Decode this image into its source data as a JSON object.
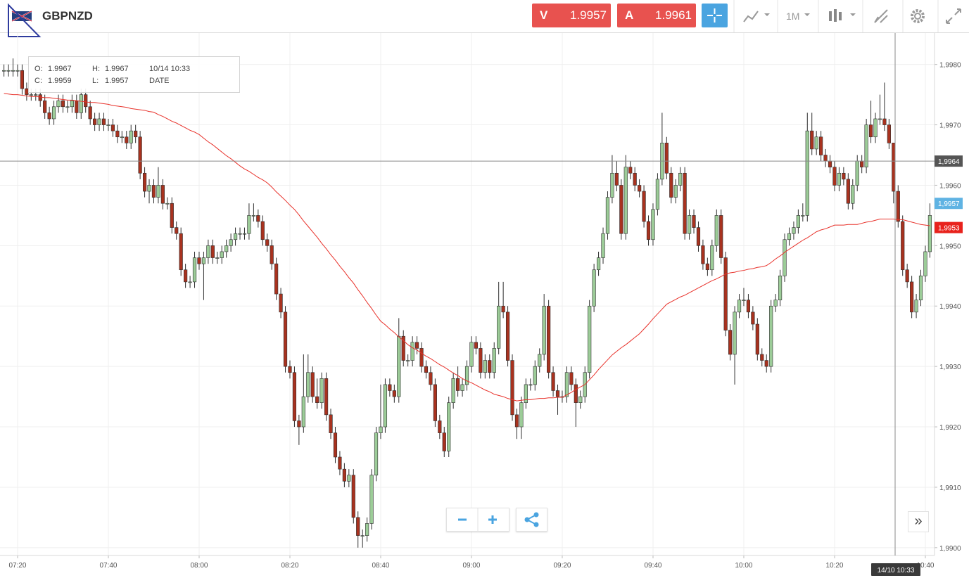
{
  "header": {
    "symbol": "GBPNZD",
    "sell": {
      "letter": "V",
      "price": 1.9957
    },
    "buy": {
      "letter": "A",
      "price": 1.9961
    },
    "timeframe": "1M"
  },
  "tooltip": {
    "open_label": "O:",
    "open": 1.9967,
    "high_label": "H:",
    "high": 1.9967,
    "time": "10/14 10:33",
    "close_label": "C:",
    "close": 1.9959,
    "low_label": "L:",
    "low": 1.9957,
    "date_label": "DATE"
  },
  "chart_data": {
    "type": "candlestick",
    "categories": [
      null,
      null,
      null,
      "07:20",
      null,
      null,
      null,
      null,
      null,
      null,
      null,
      null,
      null,
      null,
      null,
      null,
      null,
      null,
      null,
      null,
      null,
      null,
      null,
      "07:40",
      null,
      null,
      null,
      null,
      null,
      null,
      null,
      null,
      null,
      null,
      null,
      null,
      null,
      null,
      null,
      null,
      null,
      null,
      null,
      "08:00",
      null,
      null,
      null,
      null,
      null,
      null,
      null,
      null,
      null,
      null,
      null,
      null,
      null,
      null,
      null,
      null,
      null,
      null,
      null,
      "08:20",
      null,
      null,
      null,
      null,
      null,
      null,
      null,
      null,
      null,
      null,
      null,
      null,
      null,
      null,
      null,
      null,
      null,
      null,
      null,
      "08:40",
      null,
      null,
      null,
      null,
      null,
      null,
      null,
      null,
      null,
      null,
      null,
      null,
      null,
      null,
      null,
      null,
      null,
      null,
      null,
      "09:00",
      null,
      null,
      null,
      null,
      null,
      null,
      null,
      null,
      null,
      null,
      null,
      null,
      null,
      null,
      null,
      null,
      null,
      null,
      null,
      "09:20",
      null,
      null,
      null,
      null,
      null,
      null,
      null,
      null,
      null,
      null,
      null,
      null,
      null,
      null,
      null,
      null,
      null,
      null,
      null,
      "09:40",
      null,
      null,
      null,
      null,
      null,
      null,
      null,
      null,
      null,
      null,
      null,
      null,
      null,
      null,
      null,
      null,
      null,
      null,
      null,
      "10:00",
      null,
      null,
      null,
      null,
      null,
      null,
      null,
      null,
      null,
      null,
      null,
      null,
      null,
      null,
      null,
      null,
      null,
      null,
      null,
      "10:20",
      null,
      null,
      null,
      null,
      null,
      null,
      null,
      null,
      null,
      null,
      null,
      null,
      null,
      null,
      null,
      null,
      null,
      null,
      null,
      "10:40",
      null
    ],
    "open": [
      1.9979,
      1.9979,
      1.9979,
      1.9979,
      1.9979,
      1.9976,
      1.9975,
      1.9975,
      1.9975,
      1.9974,
      1.9972,
      1.9971,
      1.9973,
      1.9974,
      1.9973,
      1.9973,
      1.9974,
      1.9972,
      1.9975,
      1.9973,
      1.9971,
      1.997,
      1.9971,
      1.997,
      1.997,
      1.9969,
      1.9968,
      1.9968,
      1.9967,
      1.9969,
      1.9968,
      1.9962,
      1.9959,
      1.996,
      1.9958,
      1.996,
      1.9957,
      1.9957,
      1.9953,
      1.9952,
      1.9946,
      1.9944,
      1.9944,
      1.9948,
      1.9947,
      1.9948,
      1.995,
      1.9948,
      1.9948,
      1.9949,
      1.995,
      1.9951,
      1.9952,
      1.9952,
      1.9952,
      1.9955,
      1.9955,
      1.9954,
      1.9951,
      1.995,
      1.9947,
      1.9942,
      1.9939,
      1.993,
      1.9929,
      1.9921,
      1.992,
      1.9925,
      1.9929,
      1.9925,
      1.9924,
      1.9928,
      1.9922,
      1.9919,
      1.9915,
      1.9913,
      1.9911,
      1.9912,
      1.9905,
      1.9902,
      1.9902,
      1.9904,
      1.9912,
      1.9919,
      1.992,
      1.9927,
      1.9926,
      1.9925,
      1.9935,
      1.9931,
      1.9931,
      1.9934,
      1.9933,
      1.993,
      1.9929,
      1.9927,
      1.9921,
      1.9919,
      1.9916,
      1.9924,
      1.9928,
      1.9926,
      1.9927,
      1.993,
      1.9934,
      1.9933,
      1.9929,
      1.9931,
      1.9929,
      1.9933,
      1.994,
      1.9939,
      1.9931,
      1.9922,
      1.992,
      1.9924,
      1.9927,
      1.9927,
      1.993,
      1.9932,
      1.994,
      1.9929,
      1.9926,
      1.9925,
      1.9925,
      1.9929,
      1.9927,
      1.9924,
      1.9925,
      1.9929,
      1.994,
      1.9946,
      1.9948,
      1.9952,
      1.9958,
      1.9962,
      1.996,
      1.9952,
      1.9963,
      1.9962,
      1.996,
      1.9959,
      1.9954,
      1.9951,
      1.9956,
      1.9961,
      1.9967,
      1.9962,
      1.9958,
      1.996,
      1.9962,
      1.9952,
      1.9955,
      1.9953,
      1.995,
      1.9947,
      1.9946,
      1.995,
      1.9955,
      1.9948,
      1.9936,
      1.9932,
      1.9939,
      1.9941,
      1.9941,
      1.9939,
      1.9937,
      1.9932,
      1.9931,
      1.993,
      1.994,
      1.9941,
      1.9945,
      1.9951,
      1.9952,
      1.9953,
      1.9955,
      1.9955,
      1.9969,
      1.9966,
      1.9968,
      1.9965,
      1.9964,
      1.9963,
      1.996,
      1.9962,
      1.9961,
      1.9957,
      1.996,
      1.9964,
      1.9963,
      1.997,
      1.9968,
      1.9971,
      1.9971,
      1.997,
      1.9967,
      1.9959,
      1.9954,
      1.9946,
      1.9944,
      1.9939,
      1.9941,
      1.9945,
      1.9949
    ],
    "high": [
      1.998,
      1.998,
      1.9981,
      1.998,
      1.998,
      1.9977,
      1.9976,
      1.9976,
      1.9976,
      1.9975,
      1.9973,
      1.9974,
      1.9975,
      1.9975,
      1.9974,
      1.9975,
      1.9975,
      1.9976,
      1.9976,
      1.9974,
      1.9972,
      1.9972,
      1.9972,
      1.9971,
      1.9971,
      1.997,
      1.9969,
      1.9969,
      1.997,
      1.997,
      1.9969,
      1.9963,
      1.9961,
      1.9961,
      1.9963,
      1.9961,
      1.9958,
      1.9958,
      1.9954,
      1.9953,
      1.9947,
      1.9945,
      1.9949,
      1.9949,
      1.9949,
      1.9951,
      1.9951,
      1.9949,
      1.995,
      1.9951,
      1.9952,
      1.9953,
      1.9953,
      1.9953,
      1.9957,
      1.9957,
      1.9956,
      1.9955,
      1.9952,
      1.9951,
      1.9948,
      1.9943,
      1.994,
      1.9931,
      1.993,
      1.9922,
      1.9932,
      1.9932,
      1.993,
      1.9928,
      1.9929,
      1.9929,
      1.9923,
      1.992,
      1.9916,
      1.9914,
      1.9913,
      1.9913,
      1.9906,
      1.9903,
      1.9905,
      1.9913,
      1.992,
      1.9927,
      1.9928,
      1.9928,
      1.9927,
      1.9938,
      1.9936,
      1.9932,
      1.9935,
      1.9935,
      1.9934,
      1.9931,
      1.993,
      1.9928,
      1.9922,
      1.992,
      1.9925,
      1.9929,
      1.993,
      1.9928,
      1.9931,
      1.9935,
      1.9935,
      1.9934,
      1.9932,
      1.9932,
      1.9934,
      1.9944,
      1.9944,
      1.994,
      1.9932,
      1.9923,
      1.9925,
      1.9928,
      1.9928,
      1.9931,
      1.9933,
      1.9942,
      1.9941,
      1.993,
      1.9927,
      1.9926,
      1.993,
      1.993,
      1.9928,
      1.9926,
      1.993,
      1.9941,
      1.9947,
      1.9949,
      1.9953,
      1.9959,
      1.9965,
      1.9964,
      1.9961,
      1.9965,
      1.9964,
      1.9963,
      1.9961,
      1.996,
      1.9955,
      1.9957,
      1.9962,
      1.9972,
      1.9968,
      1.9963,
      1.9961,
      1.9963,
      1.9963,
      1.9956,
      1.9956,
      1.9954,
      1.9951,
      1.9948,
      1.9951,
      1.9956,
      1.9956,
      1.9949,
      1.9937,
      1.994,
      1.9942,
      1.9943,
      1.9942,
      1.994,
      1.9938,
      1.9933,
      1.9932,
      1.9941,
      1.9942,
      1.9946,
      1.9952,
      1.9953,
      1.9954,
      1.9956,
      1.9957,
      1.9972,
      1.9972,
      1.9969,
      1.9969,
      1.9966,
      1.9965,
      1.9964,
      1.9963,
      1.9963,
      1.9962,
      1.9961,
      1.9965,
      1.9965,
      1.9971,
      1.9974,
      1.9972,
      1.9975,
      1.9977,
      1.9971,
      1.9967,
      1.996,
      1.9955,
      1.9947,
      1.9945,
      1.9942,
      1.9946,
      1.995,
      1.9957
    ],
    "low": [
      1.9978,
      1.9978,
      1.9978,
      1.9978,
      1.9975,
      1.9974,
      1.9974,
      1.9974,
      1.9973,
      1.9971,
      1.997,
      1.997,
      1.9972,
      1.9972,
      1.9972,
      1.9972,
      1.9971,
      1.9971,
      1.9972,
      1.997,
      1.9969,
      1.9969,
      1.9969,
      1.9969,
      1.9968,
      1.9967,
      1.9967,
      1.9966,
      1.9966,
      1.9967,
      1.9961,
      1.9958,
      1.9957,
      1.9957,
      1.9957,
      1.9956,
      1.9956,
      1.9952,
      1.9951,
      1.9945,
      1.9943,
      1.9943,
      1.9943,
      1.9946,
      1.9941,
      1.9947,
      1.9947,
      1.9947,
      1.9947,
      1.9948,
      1.9949,
      1.995,
      1.9951,
      1.9951,
      1.9951,
      1.9954,
      1.9953,
      1.995,
      1.9949,
      1.9946,
      1.9941,
      1.9938,
      1.9929,
      1.9928,
      1.992,
      1.9917,
      1.9919,
      1.9924,
      1.9924,
      1.9923,
      1.9923,
      1.9921,
      1.9918,
      1.9914,
      1.9912,
      1.991,
      1.991,
      1.9904,
      1.99,
      1.99,
      1.9901,
      1.9903,
      1.9911,
      1.9918,
      1.9919,
      1.9925,
      1.9924,
      1.9924,
      1.993,
      1.993,
      1.993,
      1.9932,
      1.9929,
      1.9928,
      1.9926,
      1.992,
      1.9918,
      1.9915,
      1.9915,
      1.9923,
      1.9925,
      1.9925,
      1.9926,
      1.9929,
      1.9932,
      1.9928,
      1.9928,
      1.9928,
      1.9928,
      1.9932,
      1.9938,
      1.993,
      1.9921,
      1.9918,
      1.9918,
      1.9923,
      1.9926,
      1.9926,
      1.9929,
      1.9931,
      1.9928,
      1.9925,
      1.9922,
      1.9924,
      1.9924,
      1.9926,
      1.992,
      1.9923,
      1.9924,
      1.9928,
      1.9939,
      1.9945,
      1.9947,
      1.9951,
      1.9957,
      1.9959,
      1.9951,
      1.9951,
      1.9961,
      1.9959,
      1.9958,
      1.9953,
      1.995,
      1.995,
      1.9955,
      1.996,
      1.9961,
      1.9957,
      1.9957,
      1.9959,
      1.9951,
      1.9951,
      1.9952,
      1.9949,
      1.9946,
      1.9945,
      1.9945,
      1.9949,
      1.9947,
      1.9935,
      1.9931,
      1.9927,
      1.9938,
      1.994,
      1.9938,
      1.9936,
      1.9931,
      1.993,
      1.9929,
      1.9929,
      1.9939,
      1.994,
      1.9944,
      1.995,
      1.9951,
      1.9952,
      1.9954,
      1.9954,
      1.9965,
      1.9965,
      1.9964,
      1.9963,
      1.9962,
      1.9959,
      1.9959,
      1.996,
      1.9956,
      1.9956,
      1.9959,
      1.9962,
      1.9962,
      1.9967,
      1.9967,
      1.997,
      1.9969,
      1.9966,
      1.9957,
      1.9953,
      1.9945,
      1.9943,
      1.9938,
      1.9938,
      1.994,
      1.9944,
      1.9948
    ],
    "close": [
      1.9979,
      1.9979,
      1.9979,
      1.9979,
      1.9976,
      1.9975,
      1.9975,
      1.9975,
      1.9974,
      1.9972,
      1.9971,
      1.9973,
      1.9974,
      1.9973,
      1.9973,
      1.9974,
      1.9972,
      1.9975,
      1.9973,
      1.9971,
      1.997,
      1.9971,
      1.997,
      1.997,
      1.9969,
      1.9968,
      1.9968,
      1.9967,
      1.9969,
      1.9968,
      1.9962,
      1.9959,
      1.996,
      1.9958,
      1.996,
      1.9957,
      1.9957,
      1.9953,
      1.9952,
      1.9946,
      1.9944,
      1.9944,
      1.9948,
      1.9947,
      1.9948,
      1.995,
      1.9948,
      1.9948,
      1.9949,
      1.995,
      1.9951,
      1.9952,
      1.9952,
      1.9952,
      1.9955,
      1.9955,
      1.9954,
      1.9951,
      1.995,
      1.9947,
      1.9942,
      1.9939,
      1.993,
      1.9929,
      1.9921,
      1.992,
      1.9925,
      1.9929,
      1.9925,
      1.9924,
      1.9928,
      1.9922,
      1.9919,
      1.9915,
      1.9913,
      1.9911,
      1.9912,
      1.9905,
      1.9902,
      1.9902,
      1.9904,
      1.9912,
      1.9919,
      1.992,
      1.9927,
      1.9926,
      1.9925,
      1.9935,
      1.9931,
      1.9931,
      1.9934,
      1.9933,
      1.993,
      1.9929,
      1.9927,
      1.9921,
      1.9919,
      1.9916,
      1.9924,
      1.9928,
      1.9926,
      1.9927,
      1.993,
      1.9934,
      1.9933,
      1.9929,
      1.9931,
      1.9929,
      1.9933,
      1.994,
      1.9939,
      1.9931,
      1.9922,
      1.992,
      1.9924,
      1.9927,
      1.9927,
      1.993,
      1.9932,
      1.994,
      1.9929,
      1.9926,
      1.9925,
      1.9925,
      1.9929,
      1.9927,
      1.9924,
      1.9925,
      1.9929,
      1.994,
      1.9946,
      1.9948,
      1.9952,
      1.9958,
      1.9962,
      1.996,
      1.9952,
      1.9963,
      1.9962,
      1.996,
      1.9959,
      1.9954,
      1.9951,
      1.9956,
      1.9961,
      1.9967,
      1.9962,
      1.9958,
      1.996,
      1.9962,
      1.9952,
      1.9955,
      1.9953,
      1.995,
      1.9947,
      1.9946,
      1.995,
      1.9955,
      1.9948,
      1.9936,
      1.9932,
      1.9939,
      1.9941,
      1.9941,
      1.9939,
      1.9937,
      1.9932,
      1.9931,
      1.993,
      1.994,
      1.9941,
      1.9945,
      1.9951,
      1.9952,
      1.9953,
      1.9955,
      1.9955,
      1.9969,
      1.9966,
      1.9968,
      1.9965,
      1.9964,
      1.9963,
      1.996,
      1.9962,
      1.9961,
      1.9957,
      1.996,
      1.9964,
      1.9963,
      1.997,
      1.9968,
      1.9971,
      1.9971,
      1.997,
      1.9967,
      1.9959,
      1.9954,
      1.9946,
      1.9944,
      1.9939,
      1.9941,
      1.9945,
      1.9949,
      1.9955
    ],
    "up_color": "#9ccc98",
    "down_color": "#a8321f",
    "border_color": "#2e2e2e",
    "overlay_line": {
      "color": "#e8312a",
      "values": [
        1.99752,
        1.99751,
        1.9975,
        1.9975,
        1.99749,
        1.99748,
        1.99747,
        1.99747,
        1.99746,
        1.99745,
        1.99745,
        1.99744,
        1.99743,
        1.99742,
        1.99741,
        1.99741,
        1.9974,
        1.99739,
        1.99738,
        1.99737,
        1.99737,
        1.99736,
        1.99735,
        1.99734,
        1.99732,
        1.99731,
        1.9973,
        1.99729,
        1.99727,
        1.99726,
        1.99725,
        1.99724,
        1.99722,
        1.99721,
        1.99717,
        1.99714,
        1.9971,
        1.99706,
        1.99703,
        1.99699,
        1.99695,
        1.99691,
        1.99688,
        1.99684,
        1.99678,
        1.99672,
        1.99667,
        1.99661,
        1.99655,
        1.99649,
        1.99644,
        1.99638,
        1.99632,
        1.99627,
        1.99623,
        1.99618,
        1.99613,
        1.99609,
        1.99604,
        1.99597,
        1.99589,
        1.99582,
        1.99575,
        1.99567,
        1.9956,
        1.99551,
        1.99541,
        1.99532,
        1.99523,
        1.99514,
        1.99504,
        1.99495,
        1.99485,
        1.99476,
        1.99466,
        1.99457,
        1.99447,
        1.99438,
        1.99427,
        1.99417,
        1.99406,
        1.99396,
        1.99385,
        1.99375,
        1.99369,
        1.99362,
        1.99356,
        1.99349,
        1.99343,
        1.99336,
        1.99331,
        1.99327,
        1.99322,
        1.99317,
        1.99313,
        1.99308,
        1.99303,
        1.99299,
        1.99294,
        1.99289,
        1.99285,
        1.9928,
        1.99276,
        1.99273,
        1.99269,
        1.99265,
        1.99261,
        1.99258,
        1.99254,
        1.99252,
        1.9925,
        1.99247,
        1.99245,
        1.99243,
        1.99244,
        1.99245,
        1.99245,
        1.99246,
        1.99247,
        1.99247,
        1.99248,
        1.99248,
        1.99249,
        1.99249,
        1.99253,
        1.99257,
        1.99262,
        1.99266,
        1.9927,
        1.99278,
        1.99286,
        1.99295,
        1.99303,
        1.99311,
        1.99319,
        1.99325,
        1.99331,
        1.99336,
        1.99342,
        1.99348,
        1.99354,
        1.99362,
        1.9937,
        1.99379,
        1.99387,
        1.99395,
        1.99403,
        1.99407,
        1.99411,
        1.99415,
        1.99418,
        1.99422,
        1.99426,
        1.9943,
        1.99434,
        1.99438,
        1.99442,
        1.99445,
        1.99449,
        1.99453,
        1.99455,
        1.99456,
        1.99458,
        1.99459,
        1.99461,
        1.99462,
        1.99464,
        1.99465,
        1.99467,
        1.99472,
        1.99478,
        1.99483,
        1.99489,
        1.99494,
        1.99499,
        1.99504,
        1.99509,
        1.99513,
        1.99518,
        1.99523,
        1.99526,
        1.99528,
        1.99531,
        1.99534,
        1.99534,
        1.99534,
        1.99535,
        1.99535,
        1.99535,
        1.99537,
        1.99539,
        1.9954,
        1.99542,
        1.99544,
        1.99544,
        1.99544,
        1.99544,
        1.99543,
        1.99543,
        1.99541,
        1.99539,
        1.99537,
        1.99535,
        1.99534,
        1.99533
      ]
    },
    "ylim": [
      1.98987,
      1.99852
    ],
    "yticks": [
      {
        "value": 1.99,
        "label": "1,9900"
      },
      {
        "value": 1.991,
        "label": "1,9910"
      },
      {
        "value": 1.992,
        "label": "1,9920"
      },
      {
        "value": 1.993,
        "label": "1,9930"
      },
      {
        "value": 1.994,
        "label": "1,9940"
      },
      {
        "value": 1.995,
        "label": "1,9950"
      },
      {
        "value": 1.996,
        "label": "1,9960"
      },
      {
        "value": 1.997,
        "label": "1,9970"
      },
      {
        "value": 1.998,
        "label": "1,9980"
      }
    ],
    "grid": true,
    "price_tags": [
      {
        "value": 1.9964,
        "label": "1,9964",
        "color": "#555555",
        "show_line": true
      },
      {
        "value": 1.9957,
        "label": "1,9957",
        "color": "#5fb3e3",
        "show_line": false
      },
      {
        "value": 1.9953,
        "label": "1,9953",
        "color": "#e8221c",
        "show_line": false
      }
    ],
    "crosshair_label": "14/10 10:33"
  }
}
